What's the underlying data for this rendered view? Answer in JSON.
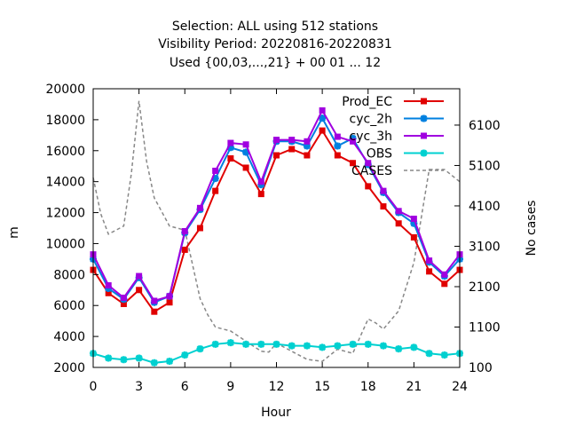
{
  "chart_data": {
    "type": "line",
    "title": [
      "Selection: ALL using   512 stations",
      "Visibility   Period: 20220816-20220831",
      "Used {00,03,...,21} + 00 01 ... 12"
    ],
    "xlabel": "Hour",
    "ylabel": "m",
    "y2label": "No cases",
    "xlim": [
      0,
      24
    ],
    "ylim": [
      2000,
      20000
    ],
    "y2lim": [
      100,
      7000
    ],
    "xticks": [
      0,
      3,
      6,
      9,
      12,
      15,
      18,
      21,
      24
    ],
    "yticks": [
      2000,
      4000,
      6000,
      8000,
      10000,
      12000,
      14000,
      16000,
      18000,
      20000
    ],
    "y2ticks": [
      100,
      1100,
      2100,
      3100,
      4100,
      5100,
      6100
    ],
    "grid": false,
    "legend_position": "top-right",
    "x": [
      0,
      1,
      2,
      3,
      4,
      5,
      6,
      7,
      8,
      9,
      10,
      11,
      12,
      13,
      14,
      15,
      16,
      17,
      18,
      19,
      20,
      21,
      22,
      23,
      24
    ],
    "series": [
      {
        "name": "Prod_EC",
        "color": "#e00000",
        "marker": "square",
        "axis": "y",
        "values": [
          8300,
          6800,
          6100,
          7000,
          5600,
          6200,
          9600,
          11000,
          13400,
          15500,
          14900,
          13200,
          15700,
          16100,
          15700,
          17300,
          15700,
          15200,
          13700,
          12400,
          11300,
          10400,
          8200,
          7400,
          8300
        ]
      },
      {
        "name": "cyc_2h",
        "color": "#0080e0",
        "marker": "star",
        "axis": "y",
        "values": [
          9000,
          7100,
          6400,
          7800,
          6200,
          6600,
          10700,
          12200,
          14200,
          16200,
          15900,
          13800,
          16600,
          16600,
          16300,
          18100,
          16300,
          16800,
          15100,
          13300,
          12000,
          11300,
          8800,
          7900,
          9000
        ]
      },
      {
        "name": "cyc_3h",
        "color": "#a000e0",
        "marker": "square",
        "axis": "y",
        "values": [
          9300,
          7300,
          6500,
          7900,
          6300,
          6600,
          10800,
          12300,
          14700,
          16500,
          16400,
          14000,
          16700,
          16700,
          16600,
          18600,
          16900,
          16600,
          15200,
          13400,
          12100,
          11600,
          8900,
          8000,
          9300
        ]
      },
      {
        "name": "OBS",
        "color": "#00d0d0",
        "marker": "star",
        "axis": "y",
        "values": [
          2900,
          2600,
          2500,
          2600,
          2300,
          2400,
          2800,
          3200,
          3500,
          3600,
          3500,
          3500,
          3500,
          3400,
          3400,
          3300,
          3400,
          3500,
          3500,
          3400,
          3200,
          3300,
          2900,
          2800,
          2900
        ]
      },
      {
        "name": "CASES",
        "color": "#888888",
        "dash": "dashed",
        "axis": "y2",
        "x": [
          0,
          0.5,
          1,
          1.5,
          2,
          2.5,
          3,
          3.5,
          4,
          5,
          6,
          7,
          7.5,
          8,
          9,
          10,
          11,
          11.5,
          12,
          13,
          14,
          15,
          16,
          17,
          18,
          18.5,
          19,
          20,
          21,
          22,
          23,
          24
        ],
        "values": [
          4800,
          3900,
          3400,
          3500,
          3600,
          4900,
          6700,
          5200,
          4300,
          3600,
          3500,
          1800,
          1400,
          1100,
          1000,
          750,
          500,
          480,
          700,
          500,
          300,
          250,
          550,
          450,
          1300,
          1200,
          1050,
          1500,
          2700,
          5000,
          5000,
          4700
        ]
      }
    ]
  }
}
